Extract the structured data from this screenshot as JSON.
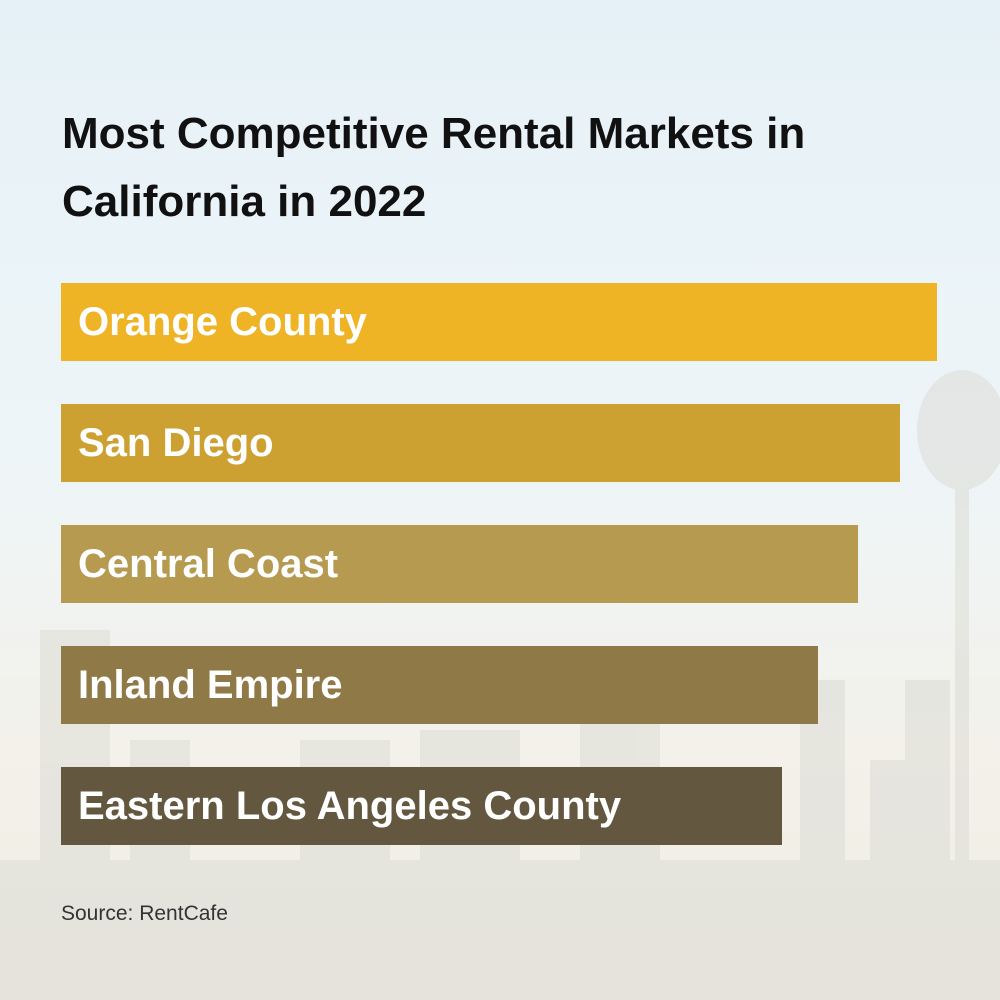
{
  "chart_data": {
    "type": "bar",
    "title": "Most Competitive Rental Markets in California in 2022",
    "categories": [
      "Orange County",
      "San Diego",
      "Central Coast",
      "Inland Empire",
      "Eastern Los Angeles County"
    ],
    "colors": [
      "#efb425",
      "#cda032",
      "#b59a4f",
      "#8f7946",
      "#63573f"
    ],
    "source": "Source: RentCafe"
  }
}
